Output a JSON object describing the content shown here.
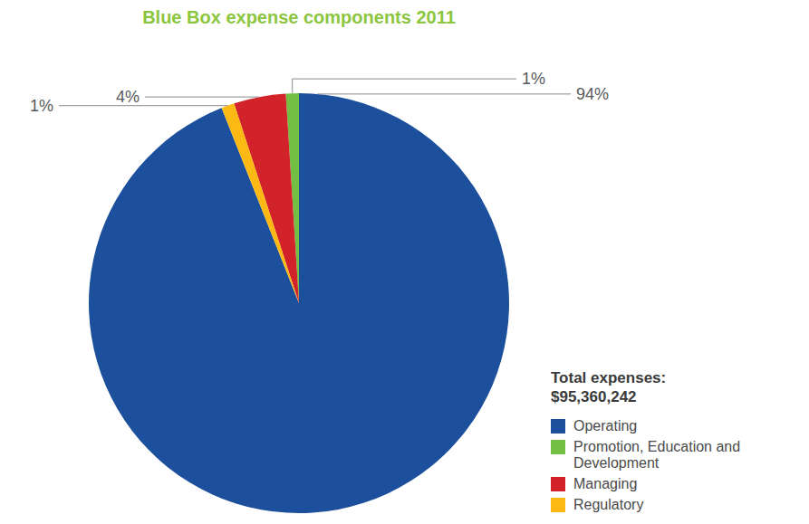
{
  "chart_data": {
    "type": "pie",
    "title": "Blue Box expense components 2011",
    "categories": [
      "Operating",
      "Promotion, Education and Development",
      "Managing",
      "Regulatory"
    ],
    "values": [
      94,
      1,
      4,
      1
    ],
    "value_labels": [
      "94%",
      "1%",
      "4%",
      "1%"
    ],
    "colors": [
      "#1c4f9c",
      "#72bf44",
      "#d2232a",
      "#fdb913"
    ],
    "data_labels": true,
    "legend": "right",
    "annotations": [
      "Total expenses:",
      "$95,360,242"
    ]
  }
}
